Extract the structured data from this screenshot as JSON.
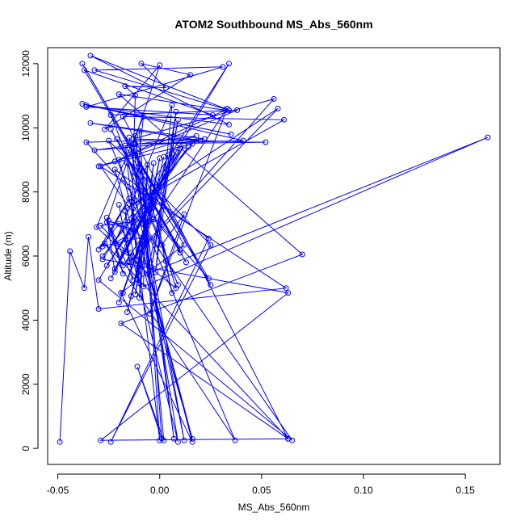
{
  "chart_data": {
    "type": "line",
    "title": "ATOM2 Southbound MS_Abs_560nm",
    "xlabel": "MS_Abs_560nm",
    "ylabel": "Altitude (m)",
    "xlim": [
      -0.055,
      0.167
    ],
    "ylim": [
      -500,
      12500
    ],
    "xticks": [
      -0.05,
      0.0,
      0.05,
      0.1,
      0.15
    ],
    "xtick_labels": [
      "-0.05",
      "0.00",
      "0.05",
      "0.10",
      "0.15"
    ],
    "yticks": [
      0,
      2000,
      4000,
      6000,
      8000,
      10000,
      12000
    ],
    "ytick_labels": [
      "0",
      "2000",
      "4000",
      "6000",
      "8000",
      "10000",
      "12000"
    ],
    "grid": false,
    "legend": "none",
    "color": "#0000ff",
    "markers": "open-circle",
    "series": [
      {
        "x": [
          -0.049,
          -0.044,
          -0.037,
          -0.035,
          -0.03,
          0.062,
          -0.029,
          0.065,
          -0.03,
          0.034,
          -0.028,
          0.063,
          -0.029,
          0.063,
          -0.027,
          0.037,
          -0.025,
          0.025,
          -0.024,
          0.024,
          -0.022,
          0.016,
          -0.02,
          0.016,
          -0.019,
          0.012,
          -0.017,
          0.012,
          -0.015,
          0.009,
          -0.014,
          0.008,
          -0.013,
          0.007,
          -0.012,
          0.002,
          -0.011,
          0.001,
          -0.01,
          0.0,
          -0.016,
          0.009,
          -0.024,
          0.038,
          -0.022,
          0.032,
          -0.02,
          0.07,
          -0.019,
          0.063,
          -0.018,
          0.061,
          -0.016,
          0.058,
          -0.015,
          0.056,
          -0.013,
          0.052,
          -0.012,
          0.041,
          -0.038,
          0.035,
          -0.036,
          0.034,
          -0.034,
          0.034,
          -0.032,
          0.031,
          -0.036,
          0.026,
          -0.037,
          0.025,
          -0.038,
          0.024,
          -0.036,
          0.022,
          -0.034,
          0.02,
          -0.032,
          0.018,
          -0.03,
          0.016,
          -0.028,
          0.014,
          -0.026,
          0.012,
          -0.024,
          0.01,
          -0.022,
          0.008,
          -0.02,
          0.006,
          -0.018,
          0.004,
          -0.016,
          0.002,
          -0.014,
          0.0,
          -0.012,
          -0.003,
          -0.01,
          -0.006,
          -0.008,
          0.161,
          -0.006,
          0.009,
          -0.004,
          0.008,
          -0.002,
          0.006,
          -0.022,
          -0.012,
          -0.025,
          -0.008,
          -0.028,
          -0.015,
          -0.03,
          -0.02,
          -0.016,
          -0.022,
          -0.026,
          -0.018,
          -0.024,
          -0.013,
          -0.02,
          -0.015,
          -0.017,
          -0.01,
          -0.014,
          0.003,
          0.006,
          0.001,
          0.012,
          -0.005,
          0.033,
          -0.018,
          -0.026,
          0.0,
          -0.027,
          0.015,
          -0.009,
          0.003,
          -0.017,
          -0.012,
          -0.014,
          -0.008,
          -0.031,
          -0.005,
          -0.029,
          -0.003,
          0.01,
          -0.021,
          0.01,
          -0.024,
          0.013,
          -0.019
        ],
        "y": [
          200,
          6150,
          5000,
          6600,
          4350,
          5000,
          8800,
          250,
          5250,
          12000,
          5900,
          4850,
          250,
          300,
          6400,
          250,
          9600,
          6350,
          200,
          6550,
          8700,
          300,
          9000,
          200,
          4850,
          6350,
          9450,
          250,
          9700,
          200,
          6100,
          5000,
          9500,
          300,
          9750,
          250,
          2550,
          300,
          9900,
          250,
          8900,
          5100,
          10400,
          10550,
          8950,
          10550,
          11050,
          6050,
          3900,
          300,
          10350,
          10250,
          7500,
          10600,
          5800,
          10900,
          9650,
          9550,
          9500,
          9600,
          10750,
          9800,
          10700,
          10100,
          12250,
          10550,
          11800,
          11900,
          10650,
          10400,
          11800,
          5100,
          12000,
          5300,
          9550,
          9650,
          10150,
          9600,
          9300,
          9750,
          8800,
          9500,
          6000,
          9400,
          5700,
          9450,
          5300,
          9350,
          5600,
          9250,
          4550,
          9200,
          4850,
          9150,
          4250,
          9100,
          4750,
          9050,
          4800,
          8900,
          4700,
          8850,
          5050,
          9700,
          5450,
          10250,
          5650,
          10500,
          5500,
          10700,
          6400,
          6800,
          7100,
          6600,
          6300,
          7800,
          6200,
          7000,
          6500,
          5500,
          7200,
          5450,
          6900,
          5250,
          7600,
          5850,
          7400,
          5150,
          7700,
          5850,
          4850,
          6350,
          7300,
          4200,
          10600,
          5700,
          7050,
          11950,
          9950,
          11650,
          12000,
          11250,
          11300,
          11000,
          6750,
          10350,
          6900,
          5400,
          6950,
          7150,
          6200,
          9650,
          6100,
          9950,
          5800,
          9400
        ]
      }
    ]
  }
}
